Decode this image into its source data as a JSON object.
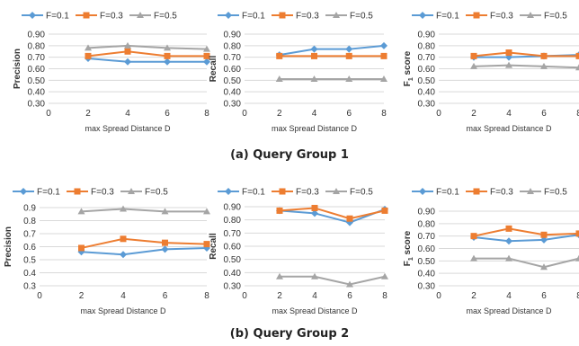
{
  "captions": [
    "(a) Query Group 1",
    "(b) Query Group 2"
  ],
  "series_colors": [
    "#5B9BD5",
    "#ED7D31",
    "#A5A5A5"
  ],
  "chart_data": [
    {
      "type": "line",
      "ylabel": "Precision",
      "xlabel": "max Spread Distance D",
      "x": [
        2,
        4,
        6,
        8
      ],
      "xlim": [
        0,
        8
      ],
      "xticks": [
        "0",
        "2",
        "4",
        "6",
        "8"
      ],
      "ylim": [
        0.3,
        0.9
      ],
      "yticks": [
        "0.30",
        "0.40",
        "0.50",
        "0.60",
        "0.70",
        "0.80",
        "0.90"
      ],
      "grid": true,
      "legend": "top",
      "series": [
        {
          "name": "F=0.1",
          "values": [
            0.69,
            0.66,
            0.66,
            0.66
          ]
        },
        {
          "name": "F=0.3",
          "values": [
            0.71,
            0.75,
            0.71,
            0.71
          ]
        },
        {
          "name": "F=0.5",
          "values": [
            0.78,
            0.8,
            0.78,
            0.77
          ]
        }
      ]
    },
    {
      "type": "line",
      "ylabel": "Recall",
      "xlabel": "max Spread Distance D",
      "x": [
        2,
        4,
        6,
        8
      ],
      "xlim": [
        0,
        8
      ],
      "xticks": [
        "0",
        "2",
        "4",
        "6",
        "8"
      ],
      "ylim": [
        0.3,
        0.9
      ],
      "yticks": [
        "0.30",
        "0.40",
        "0.50",
        "0.60",
        "0.70",
        "0.80",
        "0.90"
      ],
      "grid": true,
      "legend": "top",
      "series": [
        {
          "name": "F=0.1",
          "values": [
            0.72,
            0.77,
            0.77,
            0.8
          ]
        },
        {
          "name": "F=0.3",
          "values": [
            0.71,
            0.71,
            0.71,
            0.71
          ]
        },
        {
          "name": "F=0.5",
          "values": [
            0.51,
            0.51,
            0.51,
            0.51
          ]
        }
      ]
    },
    {
      "type": "line",
      "ylabel": "F1 score",
      "ylabel_main": "F",
      "ylabel_sub": "1",
      "ylabel_rest": " score",
      "xlabel": "max Spread Distance D",
      "x": [
        2,
        4,
        6,
        8
      ],
      "xlim": [
        0,
        8
      ],
      "xticks": [
        "0",
        "2",
        "4",
        "6",
        "8"
      ],
      "ylim": [
        0.3,
        0.9
      ],
      "yticks": [
        "0.30",
        "0.40",
        "0.50",
        "0.60",
        "0.70",
        "0.80",
        "0.90"
      ],
      "grid": true,
      "legend": "top",
      "series": [
        {
          "name": "F=0.1",
          "values": [
            0.7,
            0.7,
            0.71,
            0.72
          ]
        },
        {
          "name": "F=0.3",
          "values": [
            0.71,
            0.74,
            0.71,
            0.71
          ]
        },
        {
          "name": "F=0.5",
          "values": [
            0.62,
            0.63,
            0.62,
            0.61
          ]
        }
      ]
    },
    {
      "type": "line",
      "ylabel": "Precision",
      "xlabel": "max Spread Distance D",
      "x": [
        2,
        4,
        6,
        8
      ],
      "xlim": [
        0,
        8
      ],
      "xticks": [
        "0",
        "2",
        "4",
        "6",
        "8"
      ],
      "ylim": [
        0.3,
        0.9
      ],
      "yticks": [
        "0.3",
        "0.4",
        "0.5",
        "0.6",
        "0.7",
        "0.8",
        "0.9"
      ],
      "grid": true,
      "legend": "top",
      "series": [
        {
          "name": "F=0.1",
          "values": [
            0.56,
            0.54,
            0.58,
            0.59
          ]
        },
        {
          "name": "F=0.3",
          "values": [
            0.59,
            0.66,
            0.63,
            0.62
          ]
        },
        {
          "name": "F=0.5",
          "values": [
            0.87,
            0.89,
            0.87,
            0.87
          ]
        }
      ]
    },
    {
      "type": "line",
      "ylabel": "Recall",
      "xlabel": "max Spread Distance D",
      "x": [
        2,
        4,
        6,
        8
      ],
      "xlim": [
        0,
        8
      ],
      "xticks": [
        "0",
        "2",
        "4",
        "6",
        "8"
      ],
      "ylim": [
        0.3,
        0.9
      ],
      "yticks": [
        "0.30",
        "0.40",
        "0.50",
        "0.60",
        "0.70",
        "0.80",
        "0.90"
      ],
      "grid": true,
      "legend": "top",
      "series": [
        {
          "name": "F=0.1",
          "values": [
            0.87,
            0.85,
            0.78,
            0.88
          ]
        },
        {
          "name": "F=0.3",
          "values": [
            0.87,
            0.89,
            0.81,
            0.87
          ]
        },
        {
          "name": "F=0.5",
          "values": [
            0.37,
            0.37,
            0.31,
            0.37
          ]
        }
      ]
    },
    {
      "type": "line",
      "ylabel": "F1 score",
      "ylabel_main": "F",
      "ylabel_sub": "1",
      "ylabel_rest": " score",
      "xlabel": "max Spread Distance D",
      "x": [
        2,
        4,
        6,
        8
      ],
      "xlim": [
        0,
        8
      ],
      "xticks": [
        "0",
        "2",
        "4",
        "6",
        "8"
      ],
      "ylim": [
        0.3,
        0.9
      ],
      "yticks": [
        "0.30",
        "0.40",
        "0.50",
        "0.60",
        "0.70",
        "0.80",
        "0.90"
      ],
      "grid": true,
      "legend": "top",
      "series": [
        {
          "name": "F=0.1",
          "values": [
            0.69,
            0.66,
            0.67,
            0.71
          ]
        },
        {
          "name": "F=0.3",
          "values": [
            0.7,
            0.76,
            0.71,
            0.72
          ]
        },
        {
          "name": "F=0.5",
          "values": [
            0.52,
            0.52,
            0.45,
            0.52
          ]
        }
      ]
    }
  ]
}
